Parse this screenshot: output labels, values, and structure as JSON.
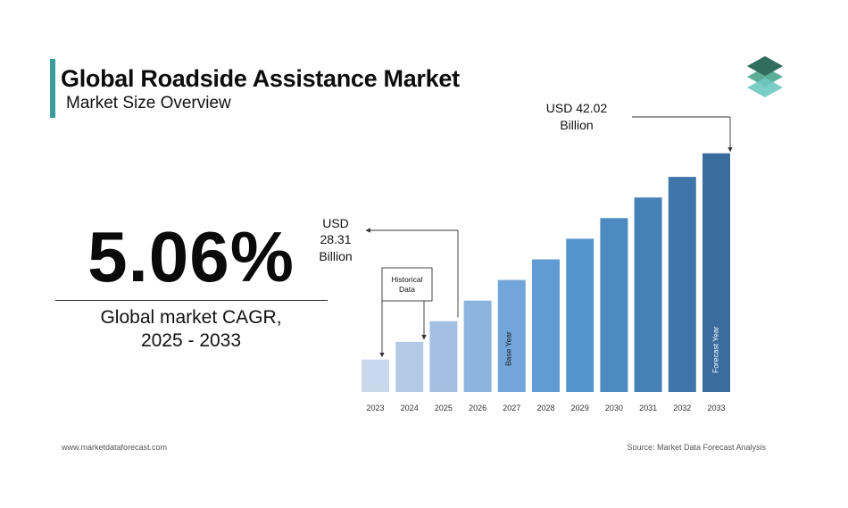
{
  "header": {
    "title": "Global Roadside Assistance Market",
    "subtitle": "Market Size Overview"
  },
  "kpi": {
    "value": "5.06%",
    "label_line1": "Global market CAGR,",
    "label_line2": "2025 - 2033"
  },
  "chart_data": {
    "type": "bar",
    "categories": [
      "2023",
      "2024",
      "2025",
      "2026",
      "2027",
      "2028",
      "2029",
      "2030",
      "2031",
      "2032",
      "2033"
    ],
    "values": [
      5.5,
      8.5,
      12.0,
      15.5,
      19.0,
      22.5,
      26.0,
      29.5,
      33.0,
      36.5,
      40.5
    ],
    "colors": [
      "#c9d8ec",
      "#b3cae7",
      "#a3c0e2",
      "#8db4de",
      "#72a5d9",
      "#609cd3",
      "#5595cd",
      "#4d8ac2",
      "#4681b6",
      "#3f76a9",
      "#3a6c9e"
    ],
    "annotations": {
      "start": {
        "line1": "USD",
        "line2": "28.31",
        "line3": "Billion"
      },
      "end": {
        "line1": "USD 42.02",
        "line2": "Billion"
      },
      "historical_line1": "Historical",
      "historical_line2": "Data",
      "base_year": "Base Year",
      "forecast_year": "Forecast Year"
    }
  },
  "footer": {
    "website": "www.marketdataforecast.com",
    "source": "Source: Market Data Forecast Analysis"
  },
  "colors": {
    "accent": "#3b9c99"
  }
}
